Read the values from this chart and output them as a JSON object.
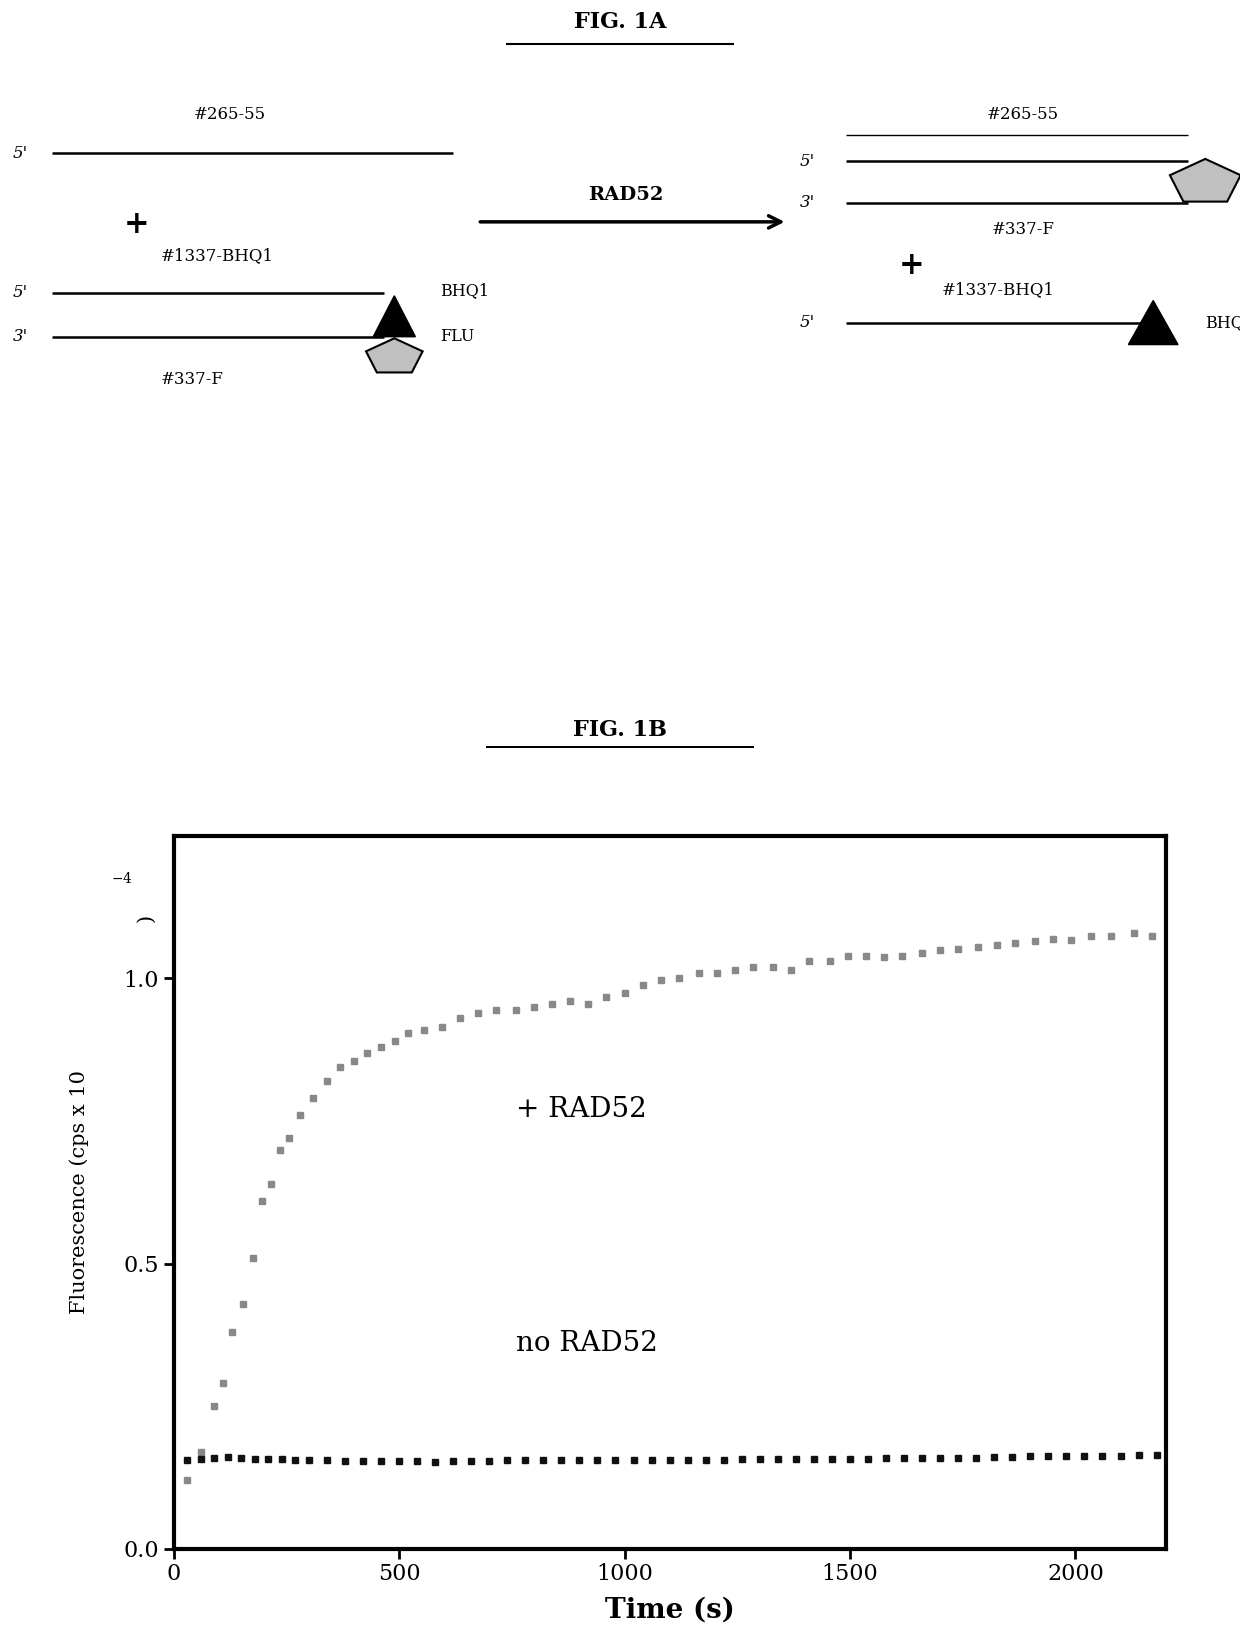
{
  "background_color": "#ffffff",
  "fig1a_title": "FIG. 1A",
  "fig1b_title": "FIG. 1B",
  "rad52_with_time": [
    30,
    60,
    90,
    110,
    130,
    155,
    175,
    195,
    215,
    235,
    255,
    280,
    310,
    340,
    370,
    400,
    430,
    460,
    490,
    520,
    555,
    595,
    635,
    675,
    715,
    760,
    800,
    840,
    880,
    920,
    960,
    1000,
    1040,
    1080,
    1120,
    1165,
    1205,
    1245,
    1285,
    1330,
    1370,
    1410,
    1455,
    1495,
    1535,
    1575,
    1615,
    1660,
    1700,
    1740,
    1785,
    1825,
    1865,
    1910,
    1950,
    1990,
    2035,
    2080,
    2130,
    2170
  ],
  "rad52_with_fluor": [
    0.12,
    0.17,
    0.25,
    0.29,
    0.38,
    0.43,
    0.51,
    0.61,
    0.64,
    0.7,
    0.72,
    0.76,
    0.79,
    0.82,
    0.845,
    0.855,
    0.87,
    0.88,
    0.89,
    0.905,
    0.91,
    0.915,
    0.93,
    0.94,
    0.945,
    0.945,
    0.95,
    0.955,
    0.96,
    0.955,
    0.968,
    0.975,
    0.988,
    0.998,
    1.0,
    1.01,
    1.01,
    1.015,
    1.02,
    1.02,
    1.015,
    1.03,
    1.03,
    1.04,
    1.04,
    1.038,
    1.04,
    1.045,
    1.05,
    1.052,
    1.055,
    1.058,
    1.062,
    1.065,
    1.07,
    1.068,
    1.075,
    1.075,
    1.08,
    1.075
  ],
  "rad52_none_time": [
    30,
    60,
    90,
    120,
    150,
    180,
    210,
    240,
    270,
    300,
    340,
    380,
    420,
    460,
    500,
    540,
    580,
    620,
    660,
    700,
    740,
    780,
    820,
    860,
    900,
    940,
    980,
    1020,
    1060,
    1100,
    1140,
    1180,
    1220,
    1260,
    1300,
    1340,
    1380,
    1420,
    1460,
    1500,
    1540,
    1580,
    1620,
    1660,
    1700,
    1740,
    1780,
    1820,
    1860,
    1900,
    1940,
    1980,
    2020,
    2060,
    2100,
    2140,
    2180
  ],
  "rad52_none_fluor": [
    0.155,
    0.158,
    0.16,
    0.161,
    0.159,
    0.158,
    0.157,
    0.157,
    0.156,
    0.156,
    0.155,
    0.154,
    0.154,
    0.154,
    0.154,
    0.154,
    0.153,
    0.154,
    0.154,
    0.154,
    0.155,
    0.155,
    0.155,
    0.155,
    0.155,
    0.155,
    0.156,
    0.155,
    0.156,
    0.156,
    0.156,
    0.156,
    0.156,
    0.157,
    0.157,
    0.157,
    0.157,
    0.158,
    0.158,
    0.158,
    0.158,
    0.159,
    0.159,
    0.159,
    0.16,
    0.16,
    0.16,
    0.161,
    0.161,
    0.162,
    0.162,
    0.162,
    0.163,
    0.163,
    0.163,
    0.164,
    0.164
  ],
  "xlabel": "Time (s)",
  "xlim": [
    0,
    2200
  ],
  "ylim": [
    0.0,
    1.25
  ],
  "xticks": [
    0,
    500,
    1000,
    1500,
    2000
  ],
  "yticks": [
    0.0,
    0.5,
    1.0
  ],
  "label_plus": "+ RAD52",
  "label_none": "no RAD52"
}
